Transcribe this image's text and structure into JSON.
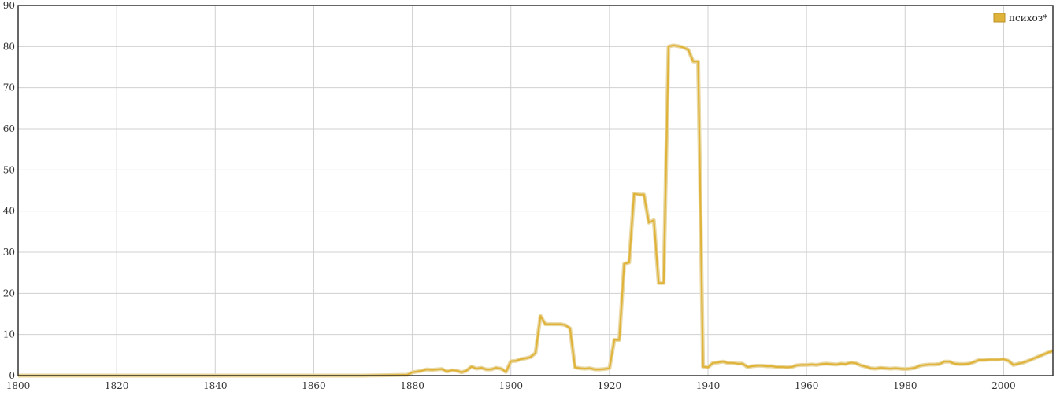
{
  "chart_data": {
    "type": "line",
    "title": "",
    "xlabel": "",
    "ylabel": "",
    "xlim": [
      1800,
      2010
    ],
    "ylim": [
      0,
      90
    ],
    "grid": true,
    "legend_position": "top-right",
    "x_ticks": [
      1800,
      1820,
      1840,
      1860,
      1880,
      1900,
      1920,
      1940,
      1960,
      1980,
      2000
    ],
    "y_ticks": [
      0,
      10,
      20,
      30,
      40,
      50,
      60,
      70,
      80,
      90
    ],
    "x_tick_labels": [
      "1800",
      "1820",
      "1840",
      "1860",
      "1880",
      "1900",
      "1920",
      "1940",
      "1960",
      "1980",
      "2000"
    ],
    "y_tick_labels": [
      "0",
      "10",
      "20",
      "30",
      "40",
      "50",
      "60",
      "70",
      "80",
      "90"
    ],
    "series": [
      {
        "name": "психоз*",
        "color": "#e0b33a",
        "x": [
          1800,
          1810,
          1820,
          1830,
          1840,
          1850,
          1860,
          1870,
          1875,
          1879,
          1880,
          1881,
          1882,
          1883,
          1884,
          1885,
          1886,
          1887,
          1888,
          1889,
          1890,
          1891,
          1892,
          1893,
          1894,
          1895,
          1896,
          1897,
          1898,
          1899,
          1900,
          1901,
          1902,
          1903,
          1904,
          1905,
          1906,
          1907,
          1908,
          1909,
          1910,
          1911,
          1912,
          1913,
          1914,
          1915,
          1916,
          1917,
          1918,
          1919,
          1920,
          1921,
          1922,
          1923,
          1924,
          1925,
          1926,
          1927,
          1928,
          1929,
          1930,
          1931,
          1932,
          1933,
          1934,
          1935,
          1936,
          1937,
          1938,
          1939,
          1940,
          1941,
          1942,
          1943,
          1944,
          1945,
          1946,
          1947,
          1948,
          1949,
          1950,
          1951,
          1952,
          1953,
          1954,
          1955,
          1956,
          1957,
          1958,
          1959,
          1960,
          1961,
          1962,
          1963,
          1964,
          1965,
          1966,
          1967,
          1968,
          1969,
          1970,
          1971,
          1972,
          1973,
          1974,
          1975,
          1976,
          1977,
          1978,
          1979,
          1980,
          1981,
          1982,
          1983,
          1984,
          1985,
          1986,
          1987,
          1988,
          1989,
          1990,
          1991,
          1992,
          1993,
          1994,
          1995,
          1996,
          1997,
          1998,
          1999,
          2000,
          2001,
          2002,
          2003,
          2004,
          2005,
          2006,
          2007,
          2008,
          2009,
          2010
        ],
        "values": [
          0,
          0,
          0,
          0,
          0,
          0,
          0,
          0,
          0.1,
          0.2,
          0.8,
          1.0,
          1.2,
          1.5,
          1.4,
          1.5,
          1.6,
          1.0,
          1.3,
          1.2,
          0.8,
          1.2,
          2.2,
          1.7,
          1.9,
          1.5,
          1.5,
          1.9,
          1.7,
          0.9,
          3.5,
          3.6,
          4.0,
          4.2,
          4.5,
          5.5,
          14.5,
          12.5,
          12.5,
          12.5,
          12.5,
          12.3,
          11.5,
          2.0,
          1.8,
          1.7,
          1.8,
          1.5,
          1.5,
          1.6,
          1.8,
          8.7,
          8.7,
          27.2,
          27.5,
          44.2,
          44.0,
          44.0,
          37.2,
          37.8,
          22.5,
          22.5,
          80.0,
          80.3,
          80.1,
          79.8,
          79.2,
          76.4,
          76.4,
          2.2,
          2.0,
          3.1,
          3.2,
          3.4,
          3.1,
          3.1,
          2.9,
          2.9,
          2.1,
          2.3,
          2.4,
          2.4,
          2.3,
          2.3,
          2.1,
          2.1,
          2.0,
          2.1,
          2.5,
          2.6,
          2.6,
          2.7,
          2.6,
          2.8,
          2.9,
          2.8,
          2.7,
          2.9,
          2.8,
          3.2,
          3.0,
          2.5,
          2.2,
          1.8,
          1.7,
          1.9,
          1.8,
          1.7,
          1.8,
          1.7,
          1.6,
          1.7,
          1.9,
          2.4,
          2.6,
          2.7,
          2.7,
          2.8,
          3.4,
          3.4,
          2.9,
          2.8,
          2.8,
          2.9,
          3.3,
          3.8,
          3.8,
          3.9,
          3.9,
          3.9,
          4.0,
          3.6,
          2.6,
          2.9,
          3.2,
          3.6,
          4.1,
          4.6,
          5.1,
          5.6,
          6.0
        ]
      }
    ]
  }
}
